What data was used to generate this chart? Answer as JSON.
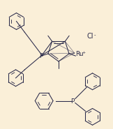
{
  "bg_color": "#faefd8",
  "line_color": "#2a2a4a",
  "text_color": "#2a2a4a",
  "figsize": [
    1.62,
    1.85
  ],
  "dpi": 100,
  "ru_label": "Ru",
  "ru_super": "+",
  "cl_label": "Cl",
  "cl_super": "-",
  "p_label": "P",
  "lw": 0.75
}
